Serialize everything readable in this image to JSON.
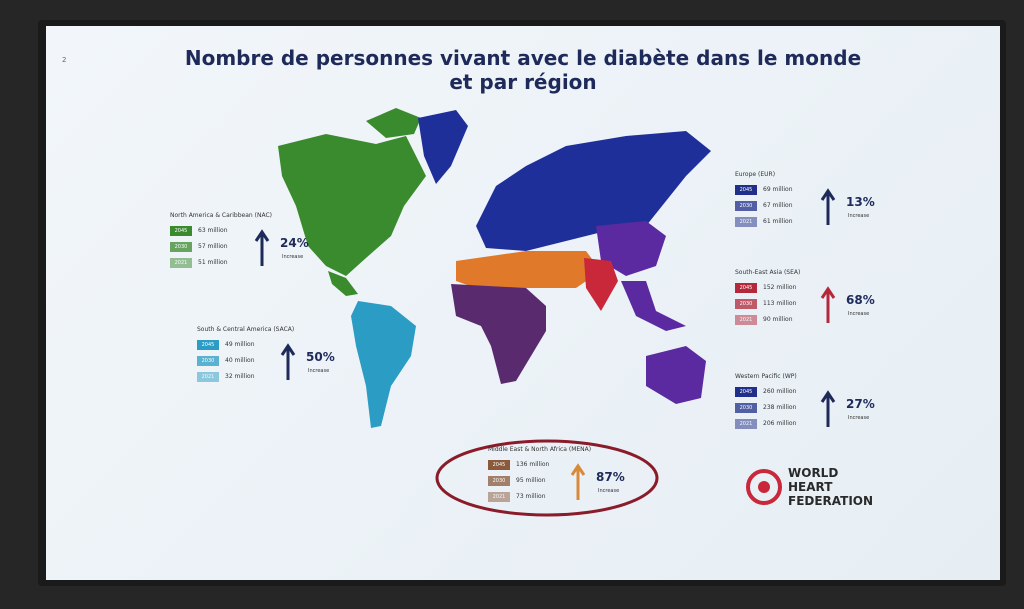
{
  "slide": {
    "page_number": "2",
    "title_lines": [
      "Nombre de personnes vivant avec le diabète dans le monde",
      "et par région"
    ],
    "regions": [
      {
        "name": "North America & Caribbean (NAC)",
        "rows": [
          {
            "year": "2045",
            "value": "63 million"
          },
          {
            "year": "2030",
            "value": "57 million"
          },
          {
            "year": "2021",
            "value": "51 million"
          }
        ],
        "change": "24%",
        "change_label": "Increase",
        "color": "#3a8a2e"
      },
      {
        "name": "South & Central America (SACA)",
        "rows": [
          {
            "year": "2045",
            "value": "49 million"
          },
          {
            "year": "2030",
            "value": "40 million"
          },
          {
            "year": "2021",
            "value": "32 million"
          }
        ],
        "change": "50%",
        "change_label": "Increase",
        "color": "#2b9cc4"
      },
      {
        "name": "Europe (EUR)",
        "rows": [
          {
            "year": "2045",
            "value": "69 million"
          },
          {
            "year": "2030",
            "value": "67 million"
          },
          {
            "year": "2021",
            "value": "61 million"
          }
        ],
        "change": "13%",
        "change_label": "Increase",
        "color": "#1f2f8a"
      },
      {
        "name": "South-East Asia (SEA)",
        "rows": [
          {
            "year": "2045",
            "value": "152 million"
          },
          {
            "year": "2030",
            "value": "113 million"
          },
          {
            "year": "2021",
            "value": "90 million"
          }
        ],
        "change": "68%",
        "change_label": "Increase",
        "color": "#b3283a"
      },
      {
        "name": "Western Pacific (WP)",
        "rows": [
          {
            "year": "2045",
            "value": "260 million"
          },
          {
            "year": "2030",
            "value": "238 million"
          },
          {
            "year": "2021",
            "value": "206 million"
          }
        ],
        "change": "27%",
        "change_label": "Increase",
        "color": "#1f2f8a"
      },
      {
        "name": "Middle East & North Africa (MENA)",
        "rows": [
          {
            "year": "2045",
            "value": "136 million"
          },
          {
            "year": "2030",
            "value": "95 million"
          },
          {
            "year": "2021",
            "value": "73 million"
          }
        ],
        "change": "87%",
        "change_label": "Increase",
        "color": "#8a5a3a"
      }
    ],
    "logo_lines": [
      "WORLD",
      "HEART",
      "FEDERATION"
    ]
  }
}
